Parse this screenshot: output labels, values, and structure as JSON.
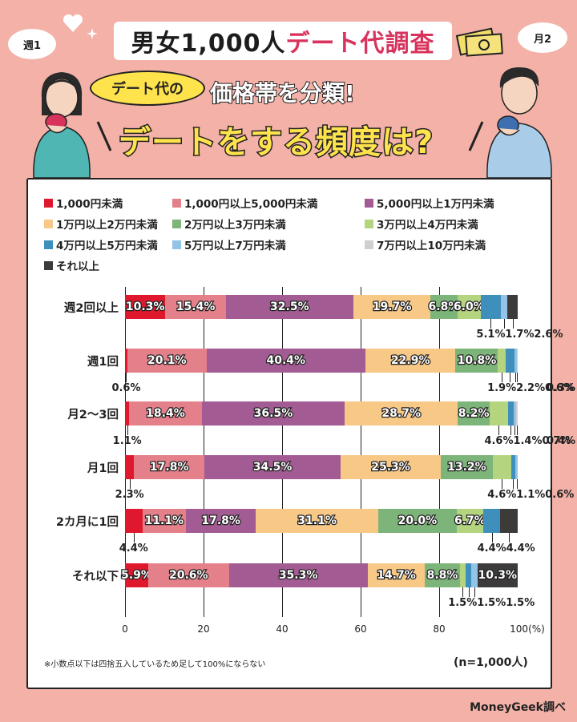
{
  "header": {
    "title_part1": "男女1,000人",
    "title_part2": "デート代調査",
    "tag": "デート代の",
    "subtitle1": "価格帯を分類!",
    "subtitle2": "デートをする頻度は?",
    "bubble_left": "週1",
    "bubble_right": "月2"
  },
  "colors": {
    "background": "#f3b1a7",
    "title_accent": "#d8335c",
    "yellow": "#ffe34d"
  },
  "chart_data": {
    "type": "bar",
    "orientation": "horizontal-stacked",
    "categories": [
      "週2回以上",
      "週1回",
      "月2～3回",
      "月1回",
      "2カ月に1回",
      "それ以下"
    ],
    "series": [
      {
        "name": "1,000円未満",
        "color": "#e0182d",
        "values": [
          10.3,
          0.6,
          1.1,
          2.3,
          4.4,
          5.9
        ]
      },
      {
        "name": "1,000円以上5,000円未満",
        "color": "#e4808a",
        "values": [
          15.4,
          20.1,
          18.4,
          17.8,
          11.1,
          20.6
        ]
      },
      {
        "name": "5,000円以上1万円未満",
        "color": "#a25b93",
        "values": [
          32.5,
          40.4,
          36.5,
          34.5,
          17.8,
          35.3
        ]
      },
      {
        "name": "1万円以上2万円未満",
        "color": "#f8c887",
        "values": [
          19.7,
          22.9,
          28.7,
          25.3,
          31.1,
          14.7
        ]
      },
      {
        "name": "2万円以上3万円未満",
        "color": "#7db47a",
        "values": [
          6.8,
          10.8,
          8.2,
          13.2,
          20.0,
          8.8
        ]
      },
      {
        "name": "3万円以上4万円未満",
        "color": "#b5d47f",
        "values": [
          6.0,
          1.9,
          4.6,
          4.6,
          6.7,
          1.5
        ]
      },
      {
        "name": "4万円以上5万円未満",
        "color": "#3f8fbd",
        "values": [
          5.1,
          2.2,
          1.4,
          1.1,
          4.4,
          1.5
        ]
      },
      {
        "name": "5万円以上7万円未満",
        "color": "#93c3e6",
        "values": [
          1.7,
          0.6,
          0.7,
          0.6,
          0.0,
          1.5
        ]
      },
      {
        "name": "7万円以上10万円未満",
        "color": "#cfcfcf",
        "values": [
          0.0,
          0.3,
          0.4,
          0.0,
          0.0,
          0.0
        ]
      },
      {
        "name": "それ以上",
        "color": "#3d3a3a",
        "values": [
          2.6,
          0.0,
          0.0,
          0.0,
          4.4,
          10.3
        ]
      }
    ],
    "value_labels": [
      [
        "10.3%",
        "15.4%",
        "32.5%",
        "19.7%",
        "6.8%",
        "6.0%",
        "5.1%",
        "1.7%",
        "",
        "2.6%"
      ],
      [
        "0.6%",
        "20.1%",
        "40.4%",
        "22.9%",
        "10.8%",
        "1.9%",
        "2.2%",
        "0.6%",
        "0.3%",
        ""
      ],
      [
        "1.1%",
        "18.4%",
        "36.5%",
        "28.7%",
        "8.2%",
        "4.6%",
        "1.4%",
        "0.7%",
        "0.4%",
        ""
      ],
      [
        "2.3%",
        "17.8%",
        "34.5%",
        "25.3%",
        "13.2%",
        "4.6%",
        "1.1%",
        "0.6%",
        "",
        ""
      ],
      [
        "4.4%",
        "11.1%",
        "17.8%",
        "31.1%",
        "20.0%",
        "6.7%",
        "4.4%",
        "",
        "",
        "4.4%"
      ],
      [
        "5.9%",
        "20.6%",
        "35.3%",
        "14.7%",
        "8.8%",
        "1.5%",
        "1.5%",
        "1.5%",
        "",
        "10.3%"
      ]
    ],
    "xaxis_ticks": [
      "0",
      "20",
      "40",
      "60",
      "80",
      "100(%)"
    ],
    "xlim": [
      0,
      100
    ],
    "grid": true,
    "legend_position": "top",
    "note": "※小数点以下は四捨五入しているため足して100%にならない",
    "n": "(n=1,000人)"
  },
  "credit": "MoneyGeek調べ"
}
